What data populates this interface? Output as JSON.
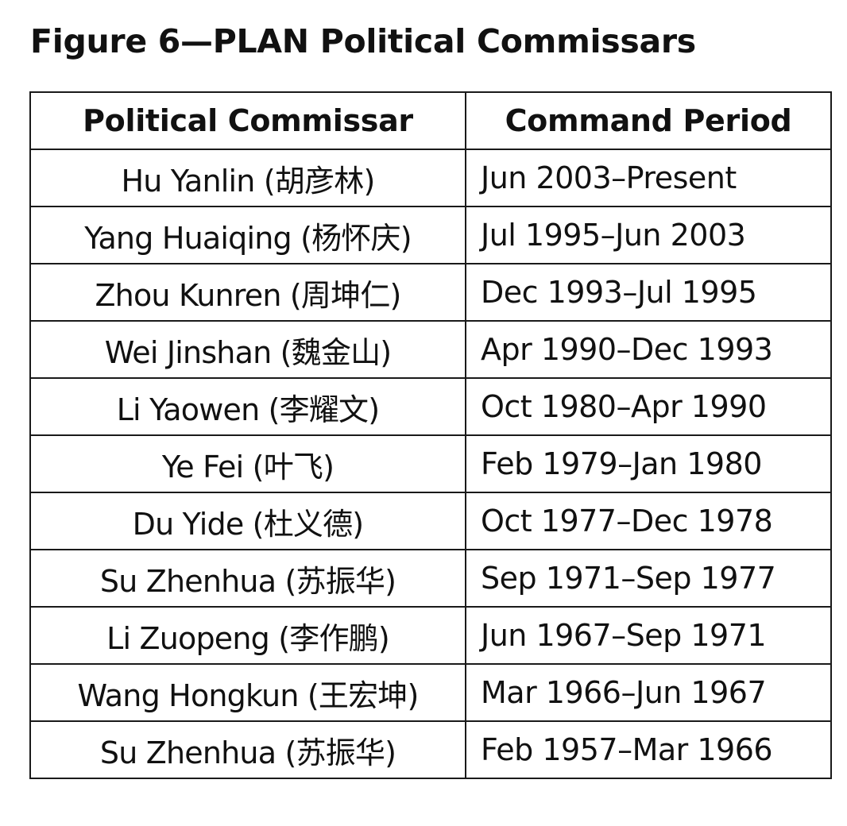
{
  "figure": {
    "title": "Figure 6—PLAN Political Commissars"
  },
  "table": {
    "headers": [
      "Political Commissar",
      "Command Period"
    ],
    "rows": [
      {
        "commissar": "Hu Yanlin (胡彦林)",
        "period": "Jun 2003–Present"
      },
      {
        "commissar": "Yang Huaiqing (杨怀庆)",
        "period": "Jul 1995–Jun 2003"
      },
      {
        "commissar": "Zhou Kunren (周坤仁)",
        "period": "Dec 1993–Jul 1995"
      },
      {
        "commissar": "Wei Jinshan (魏金山)",
        "period": "Apr 1990–Dec 1993"
      },
      {
        "commissar": "Li Yaowen (李耀文)",
        "period": "Oct 1980–Apr 1990"
      },
      {
        "commissar": "Ye Fei (叶飞)",
        "period": "Feb 1979–Jan 1980"
      },
      {
        "commissar": "Du Yide (杜义德)",
        "period": "Oct 1977–Dec 1978"
      },
      {
        "commissar": "Su Zhenhua (苏振华)",
        "period": "Sep 1971–Sep 1977"
      },
      {
        "commissar": "Li Zuopeng (李作鹏)",
        "period": "Jun 1967–Sep 1971"
      },
      {
        "commissar": "Wang Hongkun (王宏坤)",
        "period": "Mar 1966–Jun 1967"
      },
      {
        "commissar": "Su Zhenhua (苏振华)",
        "period": "Feb 1957–Mar 1966"
      }
    ]
  }
}
